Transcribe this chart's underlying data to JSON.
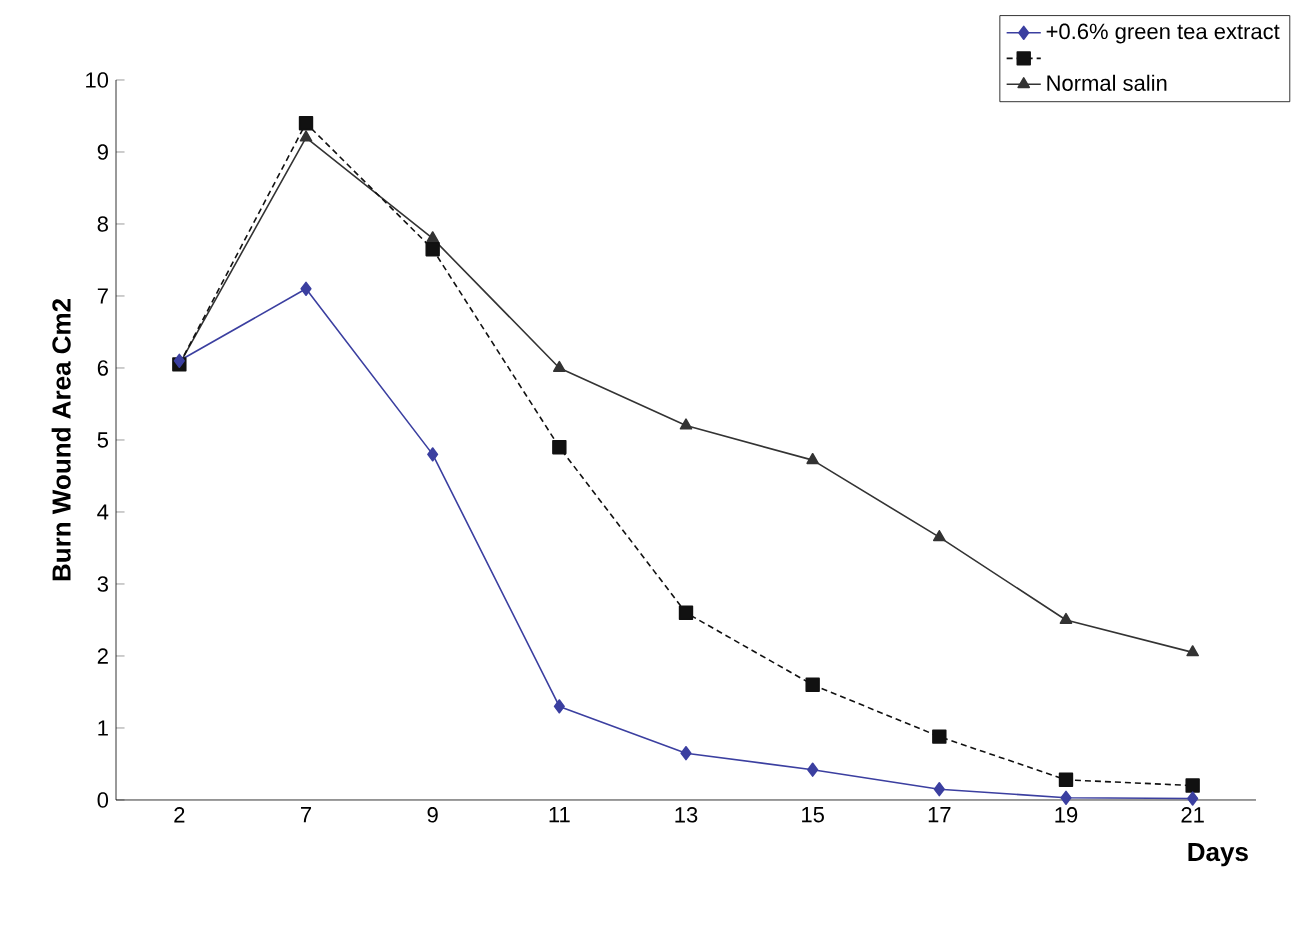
{
  "chart_data": {
    "type": "line",
    "xlabel": "Days",
    "ylabel": "Burn Wound Area  Cm2",
    "categories": [
      "2",
      "7",
      "9",
      "11",
      "13",
      "15",
      "17",
      "19",
      "21"
    ],
    "series": [
      {
        "name": "+0.6% green tea extract",
        "color": "#3b3fa0",
        "marker": "diamond",
        "line_style": "solid",
        "values": [
          6.1,
          7.1,
          4.8,
          1.3,
          0.65,
          0.42,
          0.15,
          0.03,
          0.02
        ]
      },
      {
        "color": "#111111",
        "marker": "square",
        "line_style": "dashed",
        "values": [
          6.05,
          9.4,
          7.65,
          4.9,
          2.6,
          1.6,
          0.88,
          0.28,
          0.2
        ]
      },
      {
        "name": "Normal salin",
        "color": "#333333",
        "marker": "triangle",
        "line_style": "solid",
        "values": [
          6.05,
          9.2,
          7.8,
          6.0,
          5.2,
          4.72,
          3.65,
          2.5,
          2.05
        ]
      }
    ],
    "ylim": [
      0,
      10
    ],
    "yticks": [
      0,
      1,
      2,
      3,
      4,
      5,
      6,
      7,
      8,
      9,
      10
    ],
    "grid": false,
    "legend": "top right"
  }
}
